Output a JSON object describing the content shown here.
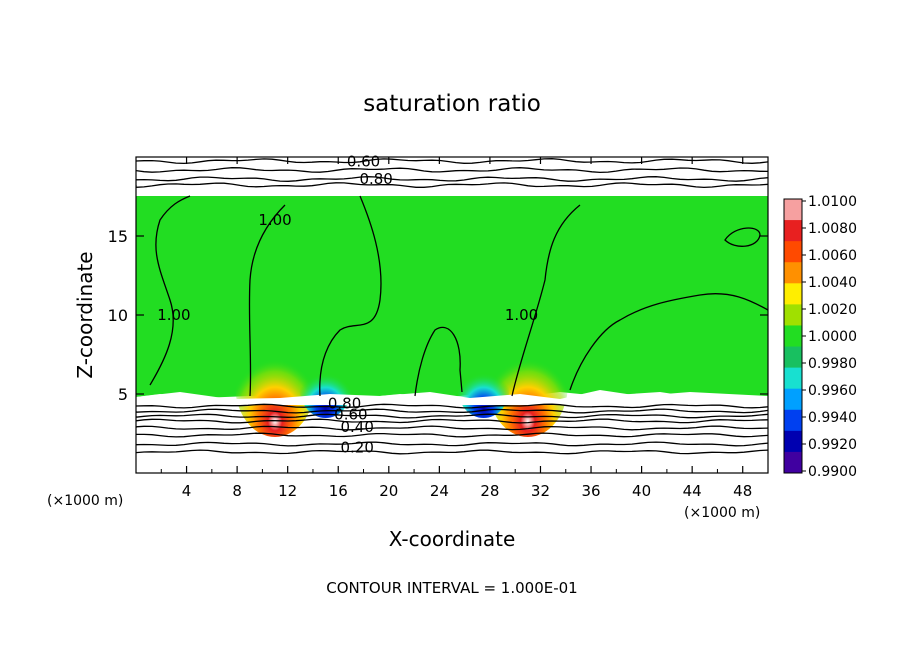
{
  "chart_data": {
    "type": "heatmap",
    "title": "saturation ratio",
    "xlabel": "X-coordinate",
    "ylabel": "Z-coordinate",
    "x_unit_left": "(×1000 m)",
    "x_unit_right": "(×1000 m)",
    "footer": "CONTOUR INTERVAL = 1.000E-01",
    "xlim": [
      0,
      50
    ],
    "ylim": [
      0,
      20
    ],
    "x_ticks": [
      4,
      8,
      12,
      16,
      20,
      24,
      28,
      32,
      36,
      40,
      44,
      48
    ],
    "y_ticks": [
      5,
      10,
      15
    ],
    "colorbar": {
      "labels": [
        "1.0100",
        "1.0080",
        "1.0060",
        "1.0040",
        "1.0020",
        "1.0000",
        "0.9980",
        "0.9960",
        "0.9940",
        "0.9920",
        "0.9900"
      ],
      "colors": [
        "#f6a0a0",
        "#e82020",
        "#ff4a00",
        "#ff9000",
        "#ffee00",
        "#a0e000",
        "#22dd22",
        "#18c060",
        "#18e0d0",
        "#00a0ff",
        "#0040f0",
        "#0000b0",
        "#4000a0"
      ]
    },
    "contour_labels": [
      {
        "text": "0.60",
        "x": 18.0,
        "y": 19.7
      },
      {
        "text": "0.80",
        "x": 19.0,
        "y": 18.6
      },
      {
        "text": "1.00",
        "x": 11.0,
        "y": 16.0
      },
      {
        "text": "1.00",
        "x": 3.0,
        "y": 10.0
      },
      {
        "text": "1.00",
        "x": 30.5,
        "y": 10.0
      },
      {
        "text": "0.80",
        "x": 16.5,
        "y": 4.4
      },
      {
        "text": "0.60",
        "x": 17.0,
        "y": 3.7
      },
      {
        "text": "0.40",
        "x": 17.5,
        "y": 2.9
      },
      {
        "text": "0.20",
        "x": 17.5,
        "y": 1.6
      }
    ],
    "warm_spots": [
      {
        "x": 11.0,
        "sat": "high"
      },
      {
        "x": 31.0,
        "sat": "high"
      }
    ],
    "dry_spots": [
      {
        "x": 15.0,
        "sat": "low"
      },
      {
        "x": 27.5,
        "sat": "low"
      }
    ]
  }
}
